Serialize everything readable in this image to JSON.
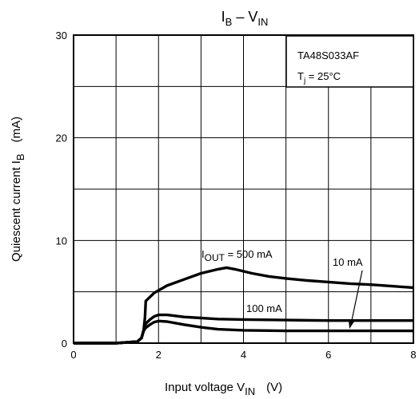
{
  "chart_data": {
    "type": "line",
    "title": {
      "main": "I",
      "sub1": "B",
      "mid": " – V",
      "sub2": "IN"
    },
    "xlabel": {
      "text": "Input voltage  V",
      "sub": "IN",
      "unit": "(V)"
    },
    "ylabel": {
      "text": "Quiescent current  I",
      "sub": "B",
      "unit": "(mA)"
    },
    "xlim": [
      0,
      8
    ],
    "ylim": [
      0,
      30
    ],
    "xticks": [
      0,
      2,
      4,
      6,
      8
    ],
    "xtick_labels": [
      "0",
      "2",
      "4",
      "6",
      "8"
    ],
    "yticks": [
      0,
      10,
      20,
      30
    ],
    "ytick_labels": [
      "0",
      "10",
      "20",
      "30"
    ],
    "grid": true,
    "grid_x_step": 1,
    "grid_y_step": 5,
    "legend_box": {
      "part": "TA48S033AF",
      "cond_prefix": "T",
      "cond_sub": "j",
      "cond_suffix": " = 25°C"
    },
    "annotations": {
      "iout_500": {
        "prefix": "I",
        "sub": "OUT",
        "suffix": " = 500 mA"
      },
      "iout_100": {
        "text": "100 mA"
      },
      "iout_10": {
        "text": "10 mA"
      }
    },
    "series": [
      {
        "label_ref": "500 mA",
        "x": [
          0,
          1.0,
          1.5,
          1.6,
          1.65,
          1.68,
          1.7,
          1.9,
          2.2,
          2.6,
          3.0,
          3.4,
          3.6,
          3.8,
          4.2,
          4.6,
          5.0,
          5.5,
          6.0,
          6.5,
          7.0,
          7.5,
          8.0
        ],
        "y": [
          0,
          0,
          0.15,
          0.5,
          1.3,
          2.5,
          4.1,
          4.9,
          5.6,
          6.2,
          6.8,
          7.2,
          7.35,
          7.2,
          6.8,
          6.5,
          6.3,
          6.1,
          5.95,
          5.8,
          5.7,
          5.55,
          5.4
        ]
      },
      {
        "label_ref": "100 mA",
        "x": [
          0,
          1.0,
          1.5,
          1.6,
          1.65,
          1.7,
          1.8,
          1.9,
          2.0,
          2.2,
          2.6,
          3.0,
          3.4,
          4.0,
          5.0,
          6.0,
          7.0,
          8.0
        ],
        "y": [
          0,
          0,
          0.15,
          0.5,
          1.3,
          1.9,
          2.3,
          2.6,
          2.75,
          2.75,
          2.55,
          2.45,
          2.35,
          2.3,
          2.25,
          2.2,
          2.2,
          2.2
        ]
      },
      {
        "label_ref": "10 mA",
        "x": [
          0,
          1.0,
          1.5,
          1.6,
          1.65,
          1.7,
          1.8,
          1.9,
          2.0,
          2.2,
          2.6,
          3.0,
          3.4,
          4.0,
          5.0,
          6.0,
          7.0,
          8.0
        ],
        "y": [
          0,
          0,
          0.15,
          0.5,
          1.2,
          1.5,
          1.8,
          2.05,
          2.15,
          2.1,
          1.8,
          1.55,
          1.35,
          1.25,
          1.2,
          1.2,
          1.2,
          1.2
        ]
      }
    ]
  }
}
